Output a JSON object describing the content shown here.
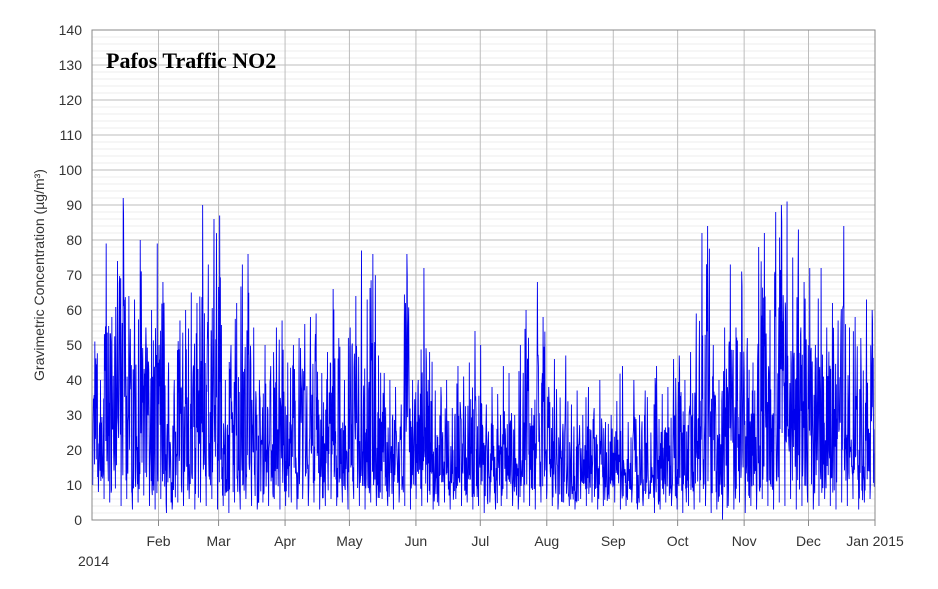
{
  "chart_data": {
    "type": "line",
    "title": "Pafos Traffic NO2",
    "ylabel": "Gravimetric Concentration (µg/m³)",
    "xlabel": "",
    "ylim": [
      0,
      140
    ],
    "yticks": [
      0,
      10,
      20,
      30,
      40,
      50,
      60,
      70,
      80,
      90,
      100,
      110,
      120,
      130,
      140
    ],
    "xlim": [
      "2014-01-01",
      "2015-01-01"
    ],
    "x_tick_labels": [
      "Feb",
      "Mar",
      "Apr",
      "May",
      "Jun",
      "Jul",
      "Aug",
      "Sep",
      "Oct",
      "Nov",
      "Dec",
      "Jan 2015"
    ],
    "x_start_label": "2014",
    "grid": true,
    "line_color": "#0000ee",
    "series": [
      {
        "resolution": "daily",
        "daily_max": [
          51,
          40,
          79,
          58,
          74,
          92,
          64,
          63,
          80,
          55,
          60,
          79,
          68,
          45,
          40,
          57,
          60,
          65,
          62,
          90,
          73,
          86,
          87,
          40,
          50,
          62,
          73,
          76,
          55,
          40,
          50,
          44,
          55,
          57,
          45,
          50,
          52,
          56,
          58,
          59,
          42,
          48,
          66,
          52,
          40,
          55,
          64,
          77,
          63,
          76,
          47,
          42,
          40,
          38,
          33,
          76,
          40,
          40,
          72,
          48,
          37,
          38,
          40,
          32,
          44,
          41,
          45,
          54,
          50,
          33,
          38,
          36,
          44,
          42,
          30,
          50,
          60,
          32,
          68,
          58,
          38,
          46,
          35,
          47,
          33,
          37,
          30,
          38,
          32,
          40,
          28,
          30,
          34,
          44,
          28,
          40,
          30,
          37,
          25,
          44,
          36,
          38,
          46,
          47,
          40,
          48,
          59,
          82,
          84,
          50,
          40,
          55,
          73,
          55,
          71,
          52,
          45,
          78,
          82,
          60,
          88,
          90,
          91,
          75,
          83,
          68,
          72,
          50,
          72,
          55,
          62,
          57,
          84,
          55,
          58,
          52,
          63,
          60
        ],
        "daily_min": [
          10,
          8,
          6,
          5,
          9,
          4,
          6,
          3,
          5,
          7,
          4,
          3,
          6,
          2,
          3,
          5,
          4,
          6,
          3,
          5,
          4,
          6,
          3,
          4,
          2,
          5,
          3,
          6,
          4,
          3,
          5,
          4,
          6,
          3,
          4,
          5,
          3,
          6,
          4,
          5,
          3,
          4,
          6,
          4,
          5,
          3,
          6,
          4,
          3,
          5,
          4,
          6,
          4,
          3,
          5,
          4,
          3,
          6,
          4,
          5,
          3,
          4,
          5,
          3,
          6,
          4,
          5,
          3,
          4,
          2,
          5,
          3,
          4,
          6,
          4,
          3,
          5,
          4,
          3,
          5,
          6,
          4,
          3,
          5,
          4,
          3,
          6,
          4,
          5,
          3,
          4,
          6,
          5,
          3,
          4,
          5,
          3,
          4,
          6,
          2,
          3,
          5,
          4,
          3,
          2,
          4,
          3,
          5,
          4,
          2,
          3,
          0,
          4,
          3,
          5,
          2,
          4,
          3,
          6,
          4,
          3,
          5,
          4,
          6,
          3,
          4,
          5,
          3,
          4,
          6,
          4,
          3,
          5,
          4,
          6,
          3,
          5,
          6
        ]
      }
    ]
  }
}
